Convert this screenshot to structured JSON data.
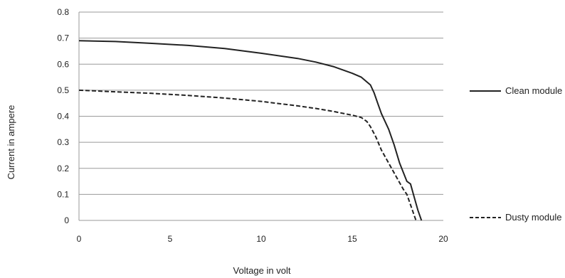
{
  "chart_data": {
    "type": "line",
    "title": "",
    "xlabel": "Voltage in volt",
    "ylabel": "Current in ampere",
    "xlim": [
      0,
      20
    ],
    "ylim": [
      0,
      0.8
    ],
    "x_ticks": [
      "0",
      "5",
      "10",
      "15",
      "20"
    ],
    "y_ticks": [
      "0",
      "0.1",
      "0.2",
      "0.3",
      "0.4",
      "0.5",
      "0.6",
      "0.7",
      "0.8"
    ],
    "grid": "horizontal",
    "legend_position": "right",
    "series": [
      {
        "name": "Clean module",
        "style": "solid",
        "color": "#222222",
        "points": [
          [
            0,
            0.69
          ],
          [
            2,
            0.687
          ],
          [
            4,
            0.68
          ],
          [
            6,
            0.672
          ],
          [
            8,
            0.66
          ],
          [
            10,
            0.642
          ],
          [
            12,
            0.622
          ],
          [
            13,
            0.608
          ],
          [
            14,
            0.59
          ],
          [
            15,
            0.565
          ],
          [
            15.5,
            0.55
          ],
          [
            16,
            0.52
          ],
          [
            16.2,
            0.49
          ],
          [
            16.4,
            0.45
          ],
          [
            16.6,
            0.41
          ],
          [
            16.8,
            0.38
          ],
          [
            17,
            0.35
          ],
          [
            17.3,
            0.29
          ],
          [
            17.6,
            0.22
          ],
          [
            18,
            0.15
          ],
          [
            18.2,
            0.14
          ],
          [
            18.4,
            0.09
          ],
          [
            18.6,
            0.04
          ],
          [
            18.8,
            0.0
          ]
        ]
      },
      {
        "name": "Dusty module",
        "style": "dashed",
        "color": "#222222",
        "points": [
          [
            0,
            0.5
          ],
          [
            2,
            0.494
          ],
          [
            4,
            0.488
          ],
          [
            6,
            0.48
          ],
          [
            8,
            0.47
          ],
          [
            10,
            0.457
          ],
          [
            12,
            0.44
          ],
          [
            13,
            0.43
          ],
          [
            14,
            0.418
          ],
          [
            15,
            0.404
          ],
          [
            15.5,
            0.395
          ],
          [
            15.8,
            0.38
          ],
          [
            16,
            0.36
          ],
          [
            16.3,
            0.32
          ],
          [
            16.6,
            0.27
          ],
          [
            17,
            0.22
          ],
          [
            17.4,
            0.17
          ],
          [
            17.8,
            0.12
          ],
          [
            18,
            0.1
          ],
          [
            18.2,
            0.06
          ],
          [
            18.4,
            0.02
          ],
          [
            18.5,
            0.0
          ]
        ]
      }
    ]
  }
}
